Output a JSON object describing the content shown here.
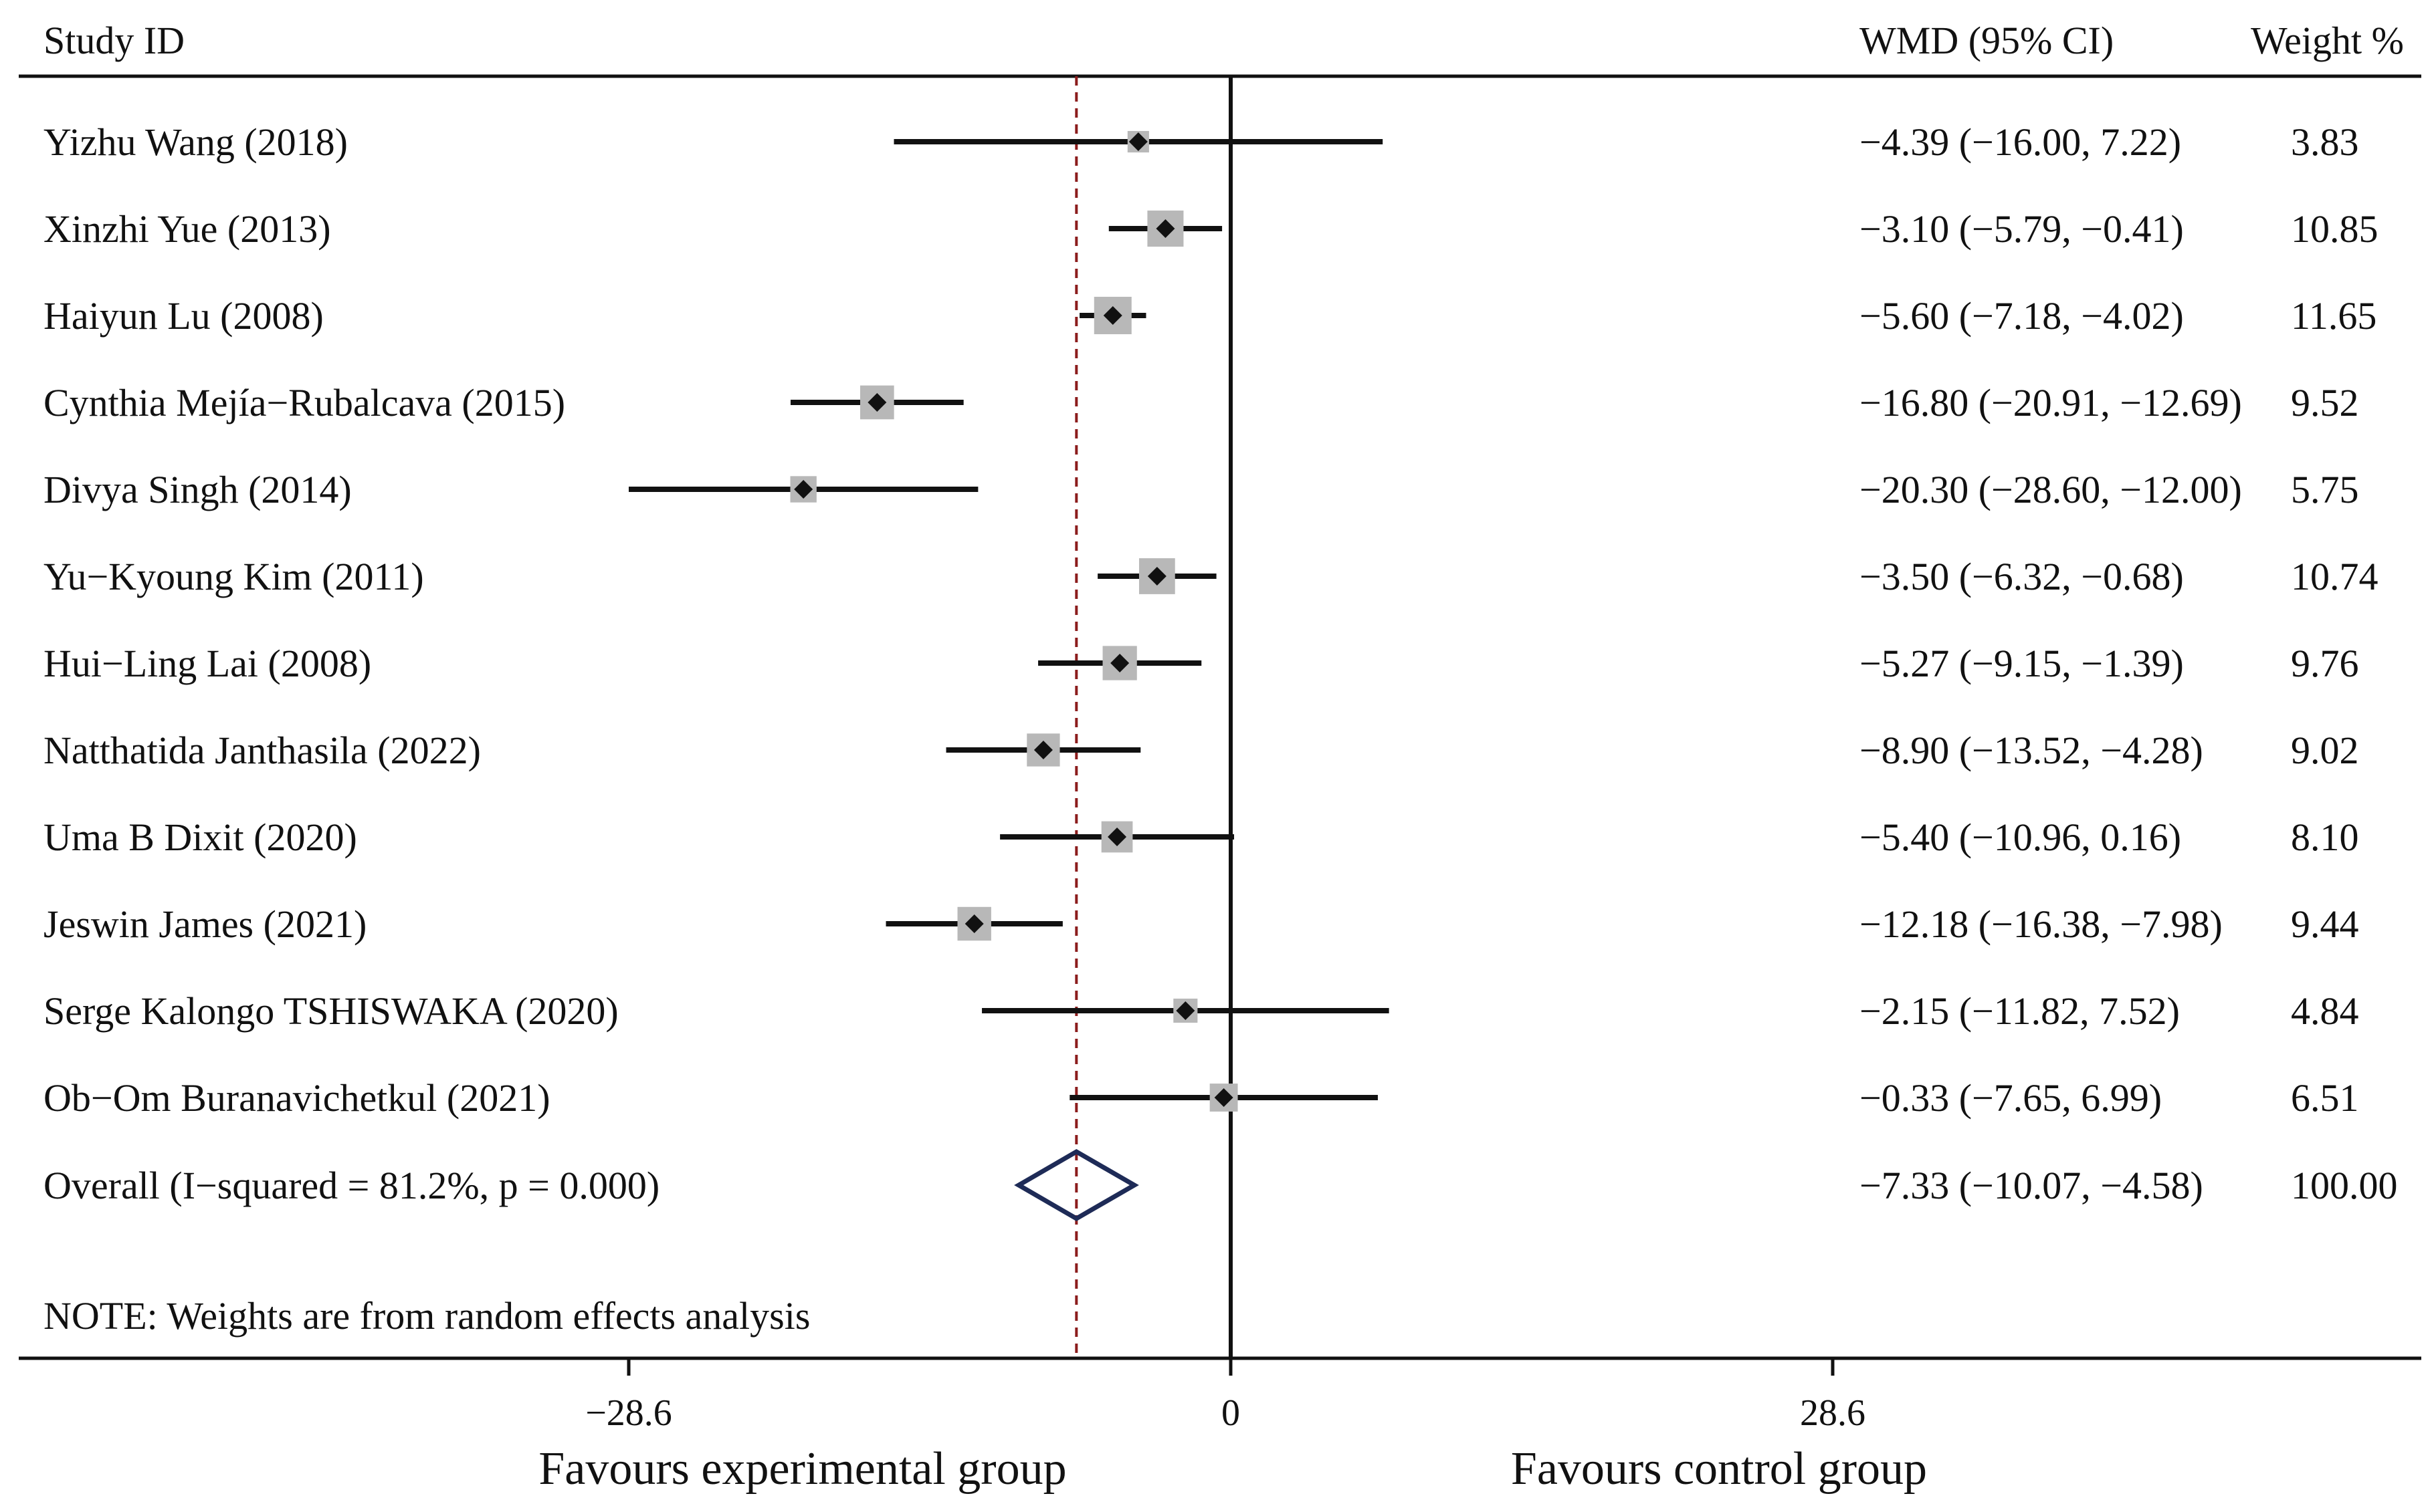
{
  "chart_data": {
    "type": "forest",
    "headers": {
      "study": "Study ID",
      "effect": "WMD (95% CI)",
      "weight": "Weight %"
    },
    "studies": [
      {
        "name": "Yizhu Wang (2018)",
        "est": -4.39,
        "lo": -16.0,
        "hi": 7.22,
        "ci_text": "−4.39 (−16.00, 7.22)",
        "weight": 3.83,
        "weight_text": "3.83"
      },
      {
        "name": "Xinzhi Yue (2013)",
        "est": -3.1,
        "lo": -5.79,
        "hi": -0.41,
        "ci_text": "−3.10 (−5.79, −0.41)",
        "weight": 10.85,
        "weight_text": "10.85"
      },
      {
        "name": "Haiyun Lu (2008)",
        "est": -5.6,
        "lo": -7.18,
        "hi": -4.02,
        "ci_text": "−5.60 (−7.18, −4.02)",
        "weight": 11.65,
        "weight_text": "11.65"
      },
      {
        "name": "Cynthia Mejía−Rubalcava (2015)",
        "est": -16.8,
        "lo": -20.91,
        "hi": -12.69,
        "ci_text": "−16.80 (−20.91, −12.69)",
        "weight": 9.52,
        "weight_text": "9.52"
      },
      {
        "name": "Divya Singh (2014)",
        "est": -20.3,
        "lo": -28.6,
        "hi": -12.0,
        "ci_text": "−20.30 (−28.60, −12.00)",
        "weight": 5.75,
        "weight_text": "5.75"
      },
      {
        "name": "Yu−Kyoung Kim (2011)",
        "est": -3.5,
        "lo": -6.32,
        "hi": -0.68,
        "ci_text": "−3.50 (−6.32, −0.68)",
        "weight": 10.74,
        "weight_text": "10.74"
      },
      {
        "name": "Hui−Ling Lai (2008)",
        "est": -5.27,
        "lo": -9.15,
        "hi": -1.39,
        "ci_text": "−5.27 (−9.15, −1.39)",
        "weight": 9.76,
        "weight_text": "9.76"
      },
      {
        "name": "Natthatida Janthasila (2022)",
        "est": -8.9,
        "lo": -13.52,
        "hi": -4.28,
        "ci_text": "−8.90 (−13.52, −4.28)",
        "weight": 9.02,
        "weight_text": "9.02"
      },
      {
        "name": "Uma B Dixit (2020)",
        "est": -5.4,
        "lo": -10.96,
        "hi": 0.16,
        "ci_text": "−5.40 (−10.96, 0.16)",
        "weight": 8.1,
        "weight_text": "8.10"
      },
      {
        "name": "Jeswin James (2021)",
        "est": -12.18,
        "lo": -16.38,
        "hi": -7.98,
        "ci_text": "−12.18 (−16.38, −7.98)",
        "weight": 9.44,
        "weight_text": "9.44"
      },
      {
        "name": "Serge Kalongo TSHISWAKA (2020)",
        "est": -2.15,
        "lo": -11.82,
        "hi": 7.52,
        "ci_text": "−2.15 (−11.82, 7.52)",
        "weight": 4.84,
        "weight_text": "4.84"
      },
      {
        "name": "Ob−Om Buranavichetkul (2021)",
        "est": -0.33,
        "lo": -7.65,
        "hi": 6.99,
        "ci_text": "−0.33 (−7.65, 6.99)",
        "weight": 6.51,
        "weight_text": "6.51"
      }
    ],
    "overall": {
      "label": "Overall  (I−squared = 81.2%, p = 0.000)",
      "est": -7.33,
      "lo": -10.07,
      "hi": -4.58,
      "ci_text": "−7.33 (−10.07, −4.58)",
      "weight_text": "100.00"
    },
    "note": "NOTE: Weights are from random effects analysis",
    "xaxis": {
      "ticks": [
        -28.6,
        0,
        28.6
      ],
      "tick_labels": [
        "−28.6",
        "0",
        "28.6"
      ],
      "range": [
        -28.6,
        28.6
      ]
    },
    "favours_left": "Favours experimental group",
    "favours_right": "Favours control group",
    "null_value": 0,
    "colors": {
      "ink": "#111111",
      "weight_box": "#b8b8b8",
      "overall_diamond": "#1e2b57",
      "overall_line": "#8b1c1c"
    }
  }
}
